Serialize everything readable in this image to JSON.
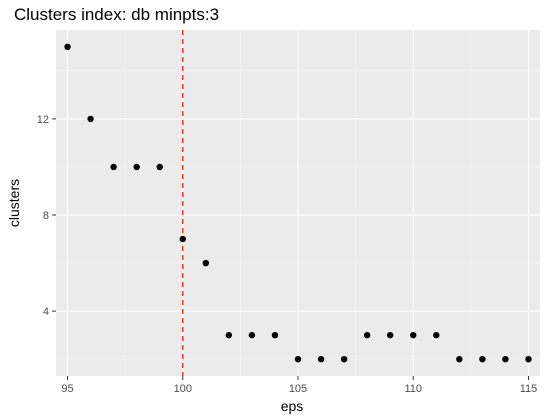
{
  "chart_data": {
    "type": "scatter",
    "title": "Clusters index: db minpts:3",
    "xlabel": "eps",
    "ylabel": "clusters",
    "xlim": [
      94.5,
      115.5
    ],
    "ylim": [
      1.3,
      15.7
    ],
    "x_ticks": [
      95,
      100,
      105,
      110,
      115
    ],
    "y_ticks": [
      4,
      8,
      12
    ],
    "grid": true,
    "legend": "none",
    "colors": {
      "panel_background": "#ebebeb",
      "grid_major": "#ffffff",
      "grid_minor": "#f5f5f5",
      "points": "#000000",
      "reference_line": "#e41a1c"
    },
    "reference_line": {
      "orientation": "vertical",
      "x": 100,
      "style": "dashed"
    },
    "points": [
      {
        "x": 95,
        "y": 15
      },
      {
        "x": 96,
        "y": 12
      },
      {
        "x": 97,
        "y": 10
      },
      {
        "x": 98,
        "y": 10
      },
      {
        "x": 99,
        "y": 10
      },
      {
        "x": 100,
        "y": 7
      },
      {
        "x": 101,
        "y": 6
      },
      {
        "x": 102,
        "y": 3
      },
      {
        "x": 103,
        "y": 3
      },
      {
        "x": 104,
        "y": 3
      },
      {
        "x": 105,
        "y": 2
      },
      {
        "x": 106,
        "y": 2
      },
      {
        "x": 107,
        "y": 2
      },
      {
        "x": 108,
        "y": 3
      },
      {
        "x": 109,
        "y": 3
      },
      {
        "x": 110,
        "y": 3
      },
      {
        "x": 111,
        "y": 3
      },
      {
        "x": 112,
        "y": 2
      },
      {
        "x": 113,
        "y": 2
      },
      {
        "x": 114,
        "y": 2
      },
      {
        "x": 115,
        "y": 2
      }
    ]
  }
}
